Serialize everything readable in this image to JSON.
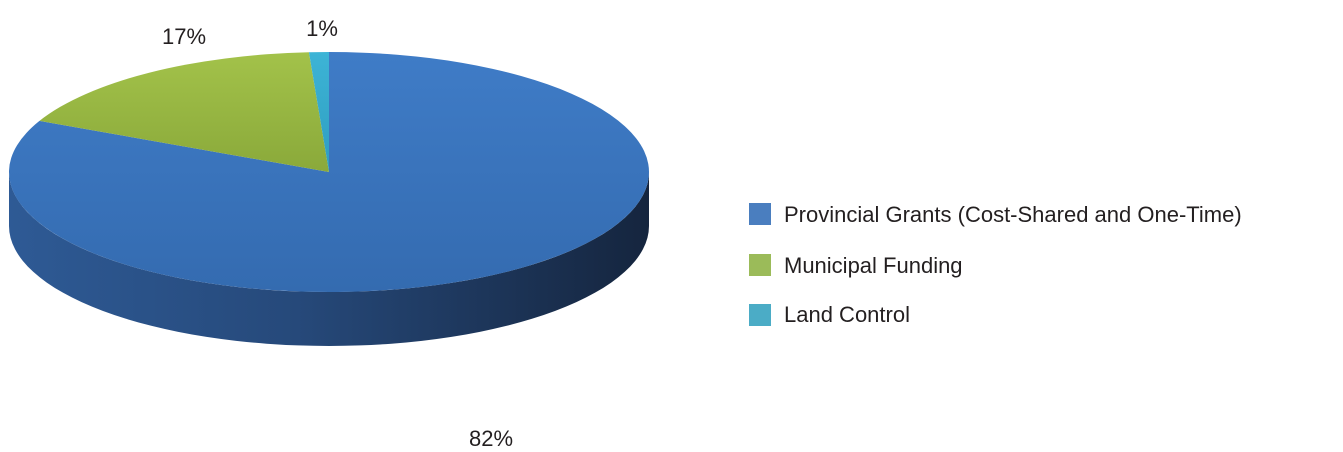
{
  "chart_data": {
    "type": "pie",
    "style": "3d",
    "slices": [
      {
        "label": "Provincial Grants (Cost-Shared and One-Time)",
        "value": 82,
        "display": "82%",
        "color": "#3e74bd"
      },
      {
        "label": "Municipal Funding",
        "value": 17,
        "display": "17%",
        "color": "#95b53f"
      },
      {
        "label": "Land Control",
        "value": 1,
        "display": "1%",
        "color": "#35a8c9"
      }
    ],
    "legend": "right"
  }
}
